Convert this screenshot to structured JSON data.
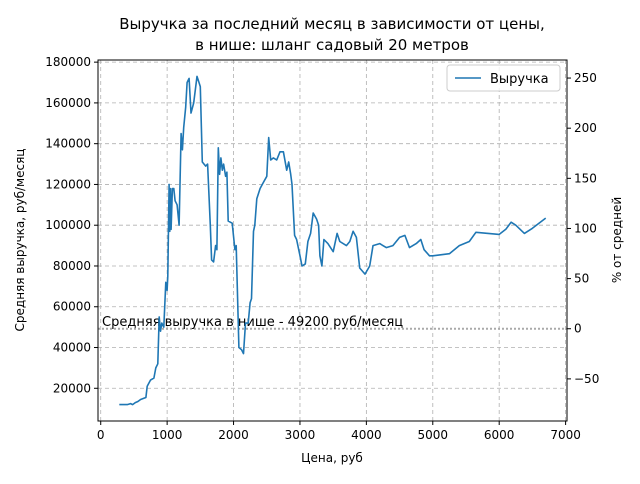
{
  "chart_data": {
    "type": "line",
    "title": [
      "Выручка за последний месяц в зависимости от цены,",
      "в нише: шланг садовый 20 метров"
    ],
    "x_label": "Цена, руб",
    "y_label": "Средняя выручка, руб/месяц",
    "y2_label": "% от средней",
    "series": [
      {
        "name": "Выручка",
        "color": "#1f77b4",
        "x": [
          280,
          400,
          450,
          480,
          520,
          560,
          600,
          640,
          680,
          700,
          750,
          800,
          830,
          860,
          880,
          900,
          920,
          950,
          980,
          1000,
          1010,
          1030,
          1040,
          1050,
          1060,
          1080,
          1100,
          1120,
          1150,
          1180,
          1210,
          1230,
          1250,
          1280,
          1300,
          1330,
          1360,
          1400,
          1450,
          1480,
          1500,
          1530,
          1580,
          1610,
          1650,
          1670,
          1700,
          1730,
          1750,
          1770,
          1790,
          1810,
          1830,
          1850,
          1880,
          1900,
          1920,
          1980,
          2020,
          2040,
          2080,
          2120,
          2150,
          2180,
          2220,
          2250,
          2270,
          2300,
          2320,
          2350,
          2400,
          2450,
          2500,
          2530,
          2560,
          2600,
          2650,
          2700,
          2750,
          2800,
          2830,
          2860,
          2880,
          2920,
          2950,
          3000,
          3030,
          3080,
          3120,
          3160,
          3200,
          3250,
          3280,
          3300,
          3330,
          3360,
          3420,
          3500,
          3560,
          3600,
          3700,
          3750,
          3800,
          3850,
          3900,
          3980,
          4050,
          4100,
          4200,
          4300,
          4400,
          4500,
          4580,
          4650,
          4750,
          4820,
          4870,
          4950,
          5000,
          5250,
          5400,
          5550,
          5650,
          6000,
          6100,
          6180,
          6250,
          6380,
          6500,
          6700
        ],
        "values": [
          12000,
          12000,
          12500,
          12000,
          13000,
          13500,
          14500,
          15000,
          15500,
          21000,
          24000,
          25000,
          30000,
          32000,
          55000,
          48000,
          52000,
          50000,
          72000,
          68000,
          75000,
          120000,
          97000,
          118000,
          98000,
          118000,
          118000,
          112000,
          110000,
          100000,
          145000,
          137000,
          148000,
          158000,
          170000,
          172000,
          155000,
          160000,
          173000,
          170000,
          168000,
          131000,
          129000,
          130000,
          100000,
          83000,
          82000,
          90000,
          88000,
          138000,
          125000,
          133000,
          127000,
          130000,
          124000,
          126000,
          102000,
          101000,
          88000,
          90000,
          40000,
          39000,
          37000,
          52000,
          52000,
          62000,
          64000,
          97000,
          100000,
          113000,
          118000,
          121000,
          124000,
          143000,
          132000,
          133000,
          132000,
          136000,
          136000,
          127000,
          131000,
          125000,
          120000,
          95000,
          93000,
          85000,
          80000,
          81000,
          92000,
          96000,
          106000,
          103000,
          100000,
          85000,
          80000,
          93000,
          91000,
          87000,
          96000,
          92000,
          90000,
          92000,
          97000,
          94000,
          79000,
          76000,
          80000,
          90000,
          91000,
          89000,
          90000,
          94000,
          95000,
          89000,
          91000,
          93000,
          88000,
          85000,
          85000,
          86000,
          90000,
          92000,
          96500,
          95500,
          98000,
          101500,
          100000,
          96000,
          98500,
          103500
        ]
      }
    ],
    "reference_line": {
      "value": 49200,
      "label": "Средняя выручка в нише - 49200 руб/месяц",
      "color": "#aaaaaa"
    },
    "xlim": [
      -41,
      7021
    ],
    "xticks": [
      0,
      1000,
      2000,
      3000,
      4000,
      5000,
      6000,
      7000
    ],
    "ylim": [
      3950,
      181050
    ],
    "yticks": [
      20000,
      40000,
      60000,
      80000,
      100000,
      120000,
      140000,
      160000,
      180000
    ],
    "y2lim": [
      -92,
      268
    ],
    "y2ticks": [
      {
        "value": -50,
        "label": "−50"
      },
      0,
      50,
      100,
      150,
      200,
      250
    ],
    "grid": true,
    "legend": "upper right"
  }
}
